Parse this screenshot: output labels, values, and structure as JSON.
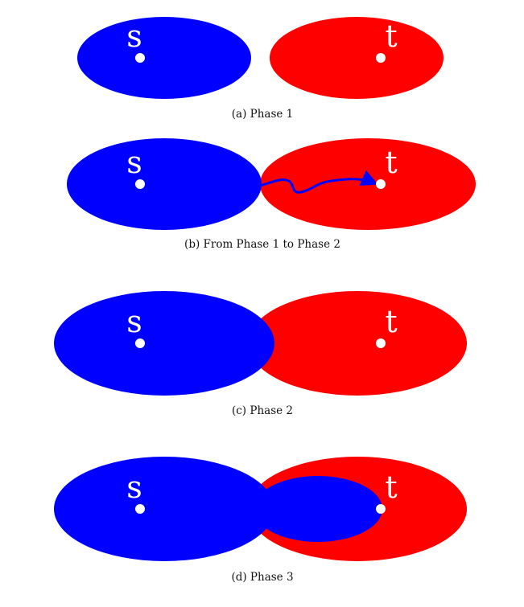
{
  "colors": {
    "source_region": "#0000ff",
    "target_region": "#ff0000",
    "vertex_dot": "#ffffff",
    "label_text": "#ffffff",
    "caption_text": "#111111"
  },
  "labels": {
    "source": "s",
    "target": "t"
  },
  "panels": [
    {
      "caption": "(a) Phase 1"
    },
    {
      "caption": "(b) From Phase 1 to Phase 2"
    },
    {
      "caption": "(c) Phase 2"
    },
    {
      "caption": "(d) Phase 3"
    }
  ]
}
